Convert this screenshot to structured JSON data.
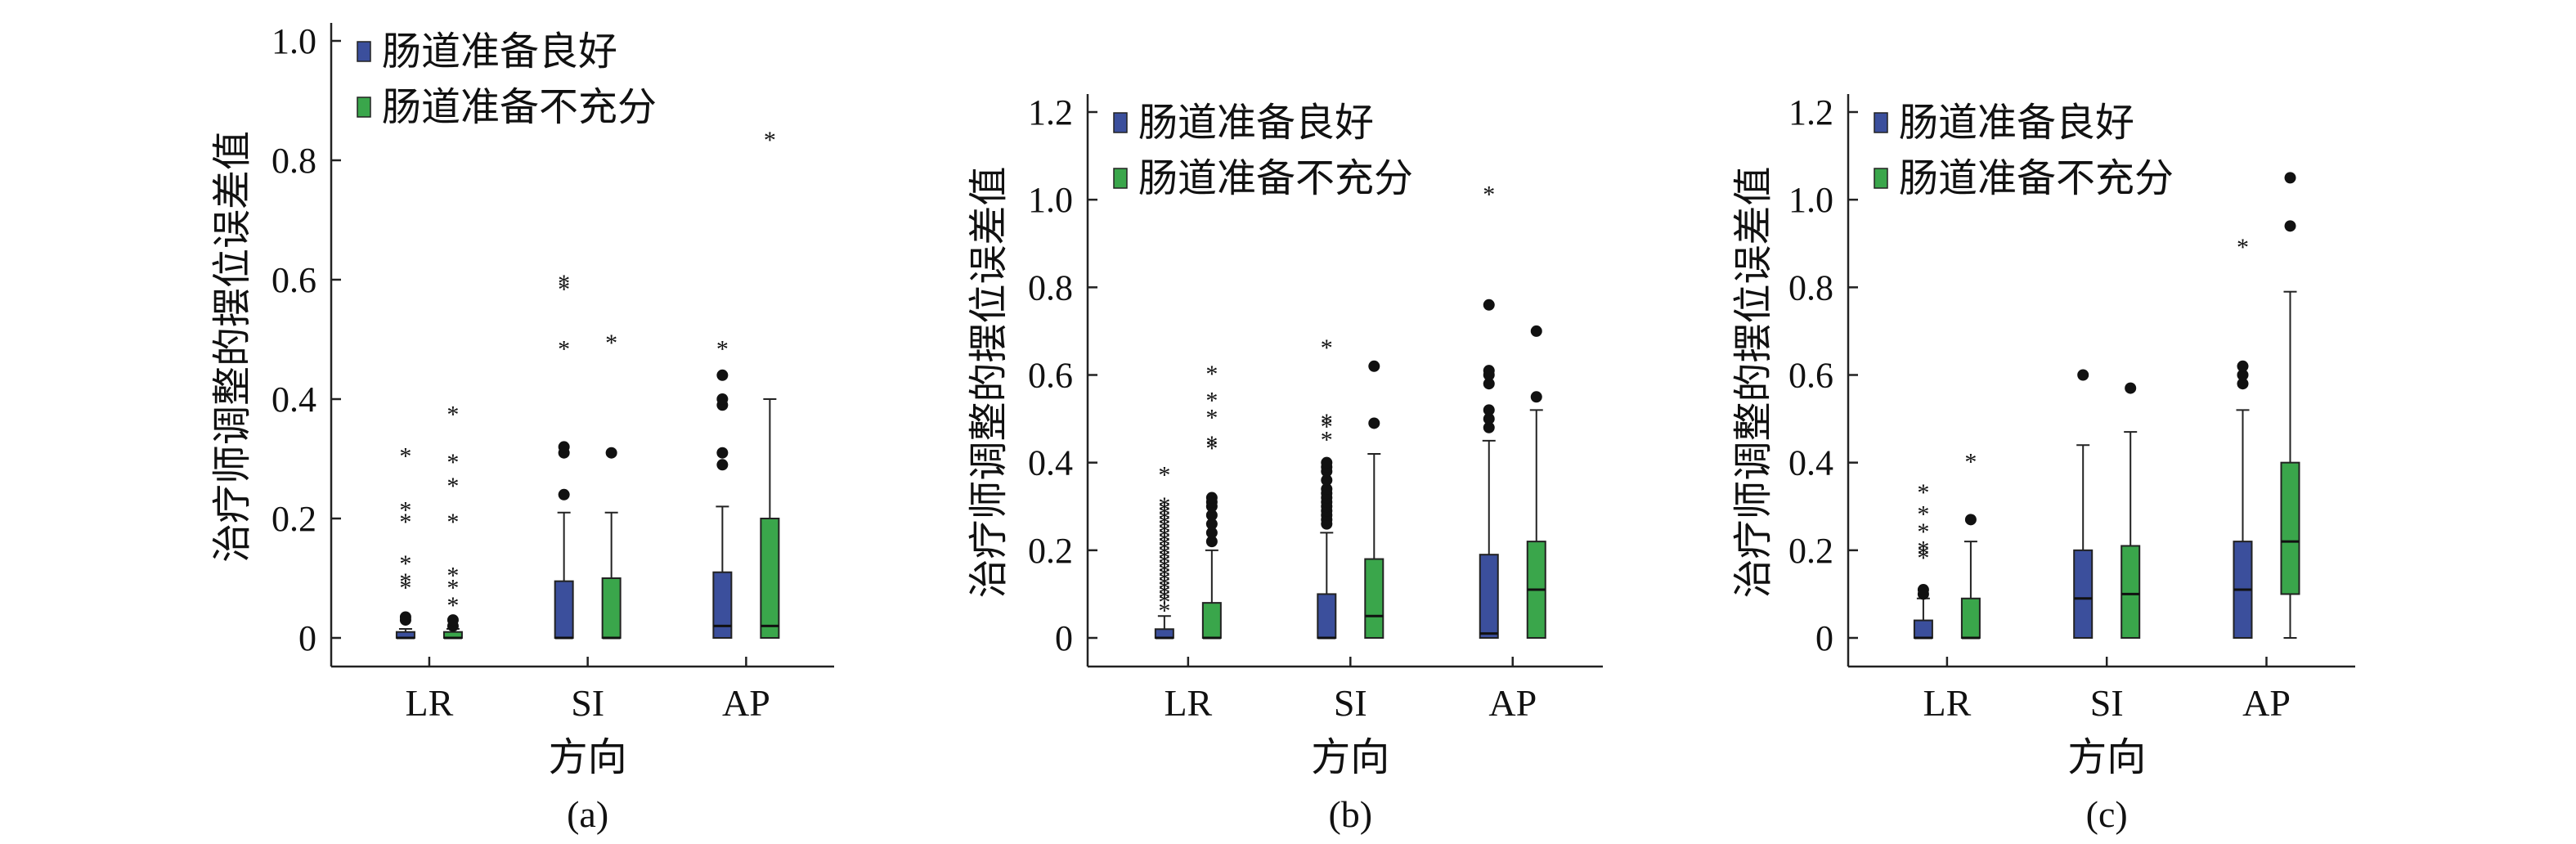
{
  "chart_data": [
    {
      "type": "box",
      "panel_label": "(a)",
      "xlabel": "方向",
      "ylabel": "治疗师调整的摆位误差值",
      "ylim": [
        0,
        1.0
      ],
      "yticks": [
        "0",
        "0.2",
        "0.4",
        "0.6",
        "0.8",
        "1.0"
      ],
      "categories": [
        "LR",
        "SI",
        "AP"
      ],
      "legend_position": "top-left",
      "grid": false,
      "series": [
        {
          "name": "肠道准备良好",
          "color": "#3b4f9c",
          "boxes": [
            {
              "min": 0,
              "q1": 0,
              "median": 0,
              "q3": 0.01,
              "max": 0.015,
              "circles": [
                0.03,
                0.035
              ],
              "stars": [
                0.09,
                0.1,
                0.13,
                0.2,
                0.22,
                0.31
              ]
            },
            {
              "min": 0,
              "q1": 0,
              "median": 0,
              "q3": 0.095,
              "max": 0.21,
              "circles": [
                0.24,
                0.31,
                0.32
              ],
              "stars": [
                0.49,
                0.59,
                0.6
              ]
            },
            {
              "min": 0,
              "q1": 0,
              "median": 0.02,
              "q3": 0.11,
              "max": 0.22,
              "circles": [
                0.29,
                0.31,
                0.39,
                0.4,
                0.44
              ],
              "stars": [
                0.49
              ]
            }
          ]
        },
        {
          "name": "肠道准备不充分",
          "color": "#3aa64b",
          "boxes": [
            {
              "min": 0,
              "q1": 0,
              "median": 0,
              "q3": 0.01,
              "max": 0.015,
              "circles": [
                0.02,
                0.03
              ],
              "stars": [
                0.06,
                0.09,
                0.11,
                0.2,
                0.26,
                0.3,
                0.38
              ]
            },
            {
              "min": 0,
              "q1": 0,
              "median": 0,
              "q3": 0.1,
              "max": 0.21,
              "circles": [
                0.31
              ],
              "stars": [
                0.5
              ]
            },
            {
              "min": 0,
              "q1": 0,
              "median": 0.02,
              "q3": 0.2,
              "max": 0.4,
              "circles": [],
              "stars": [
                0.84
              ]
            }
          ]
        }
      ]
    },
    {
      "type": "box",
      "panel_label": "(b)",
      "xlabel": "方向",
      "ylabel": "治疗师调整的摆位误差值",
      "ylim": [
        0,
        1.2
      ],
      "yticks": [
        "0",
        "0.2",
        "0.4",
        "0.6",
        "0.8",
        "1.0",
        "1.2"
      ],
      "categories": [
        "LR",
        "SI",
        "AP"
      ],
      "legend_position": "top-left",
      "grid": false,
      "series": [
        {
          "name": "肠道准备良好",
          "color": "#3b4f9c",
          "boxes": [
            {
              "min": 0,
              "q1": 0,
              "median": 0,
              "q3": 0.02,
              "max": 0.05,
              "circles": [],
              "stars": [
                0.07,
                0.09,
                0.1,
                0.11,
                0.12,
                0.13,
                0.14,
                0.15,
                0.16,
                0.17,
                0.18,
                0.19,
                0.2,
                0.21,
                0.22,
                0.23,
                0.24,
                0.25,
                0.26,
                0.27,
                0.28,
                0.29,
                0.3,
                0.31,
                0.38
              ]
            },
            {
              "min": 0,
              "q1": 0,
              "median": 0,
              "q3": 0.1,
              "max": 0.24,
              "circles": [
                0.26,
                0.27,
                0.28,
                0.29,
                0.3,
                0.31,
                0.32,
                0.33,
                0.34,
                0.36,
                0.38,
                0.39,
                0.4
              ],
              "stars": [
                0.46,
                0.49,
                0.5,
                0.67
              ]
            },
            {
              "min": 0,
              "q1": 0,
              "median": 0.01,
              "q3": 0.19,
              "max": 0.45,
              "circles": [
                0.48,
                0.5,
                0.52,
                0.58,
                0.6,
                0.61,
                0.76
              ],
              "stars": [
                1.02
              ]
            }
          ]
        },
        {
          "name": "肠道准备不充分",
          "color": "#3aa64b",
          "boxes": [
            {
              "min": 0,
              "q1": 0,
              "median": 0,
              "q3": 0.08,
              "max": 0.2,
              "circles": [
                0.22,
                0.24,
                0.26,
                0.28,
                0.3,
                0.31,
                0.32
              ],
              "stars": [
                0.44,
                0.45,
                0.51,
                0.55,
                0.61
              ]
            },
            {
              "min": 0,
              "q1": 0,
              "median": 0.05,
              "q3": 0.18,
              "max": 0.42,
              "circles": [
                0.49,
                0.62
              ],
              "stars": []
            },
            {
              "min": 0,
              "q1": 0,
              "median": 0.11,
              "q3": 0.22,
              "max": 0.52,
              "circles": [
                0.55,
                0.7
              ],
              "stars": []
            }
          ]
        }
      ]
    },
    {
      "type": "box",
      "panel_label": "(c)",
      "xlabel": "方向",
      "ylabel": "治疗师调整的摆位误差值",
      "ylim": [
        0,
        1.2
      ],
      "yticks": [
        "0",
        "0.2",
        "0.4",
        "0.6",
        "0.8",
        "1.0",
        "1.2"
      ],
      "categories": [
        "LR",
        "SI",
        "AP"
      ],
      "legend_position": "top-left",
      "grid": false,
      "series": [
        {
          "name": "肠道准备良好",
          "color": "#3b4f9c",
          "boxes": [
            {
              "min": 0,
              "q1": 0,
              "median": 0,
              "q3": 0.04,
              "max": 0.09,
              "circles": [
                0.1,
                0.11
              ],
              "stars": [
                0.19,
                0.2,
                0.21,
                0.25,
                0.29,
                0.34
              ]
            },
            {
              "min": 0,
              "q1": 0,
              "median": 0.09,
              "q3": 0.2,
              "max": 0.44,
              "circles": [
                0.6
              ],
              "stars": []
            },
            {
              "min": 0,
              "q1": 0,
              "median": 0.11,
              "q3": 0.22,
              "max": 0.52,
              "circles": [
                0.58,
                0.6,
                0.62
              ],
              "stars": [
                0.9
              ]
            }
          ]
        },
        {
          "name": "肠道准备不充分",
          "color": "#3aa64b",
          "boxes": [
            {
              "min": 0,
              "q1": 0,
              "median": 0,
              "q3": 0.09,
              "max": 0.22,
              "circles": [
                0.27
              ],
              "stars": [
                0.41
              ]
            },
            {
              "min": 0,
              "q1": 0,
              "median": 0.1,
              "q3": 0.21,
              "max": 0.47,
              "circles": [
                0.57
              ],
              "stars": []
            },
            {
              "min": 0,
              "q1": 0.1,
              "median": 0.22,
              "q3": 0.4,
              "max": 0.79,
              "circles": [
                0.94,
                1.05
              ],
              "stars": []
            }
          ]
        }
      ]
    }
  ]
}
